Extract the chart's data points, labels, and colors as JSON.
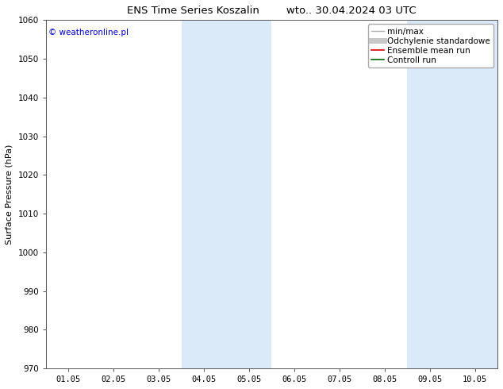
{
  "title_left": "ENS Time Series Koszalin",
  "title_right": "wto.. 30.04.2024 03 UTC",
  "ylabel": "Surface Pressure (hPa)",
  "ylim": [
    970,
    1060
  ],
  "yticks": [
    970,
    980,
    990,
    1000,
    1010,
    1020,
    1030,
    1040,
    1050,
    1060
  ],
  "xlim": [
    -0.5,
    9.5
  ],
  "xtick_labels": [
    "01.05",
    "02.05",
    "03.05",
    "04.05",
    "05.05",
    "06.05",
    "07.05",
    "08.05",
    "09.05",
    "10.05"
  ],
  "xtick_positions": [
    0,
    1,
    2,
    3,
    4,
    5,
    6,
    7,
    8,
    9
  ],
  "shaded_regions": [
    {
      "xmin": 2.5,
      "xmax": 4.5,
      "color": "#daeaf8"
    },
    {
      "xmin": 7.5,
      "xmax": 9.5,
      "color": "#daeaf8"
    }
  ],
  "legend_entries": [
    {
      "label": "min/max",
      "color": "#b0b0b0",
      "lw": 1.0
    },
    {
      "label": "Odchylenie standardowe",
      "color": "#c8c8c8",
      "lw": 5.0
    },
    {
      "label": "Ensemble mean run",
      "color": "#dd0000",
      "lw": 1.2
    },
    {
      "label": "Controll run",
      "color": "#006600",
      "lw": 1.2
    }
  ],
  "copyright_text": "© weatheronline.pl",
  "copyright_color": "#0000cc",
  "background_color": "#ffffff",
  "plot_bg_color": "#ffffff",
  "title_fontsize": 9.5,
  "ylabel_fontsize": 8,
  "tick_fontsize": 7.5,
  "legend_fontsize": 7.5,
  "copyright_fontsize": 7.5
}
